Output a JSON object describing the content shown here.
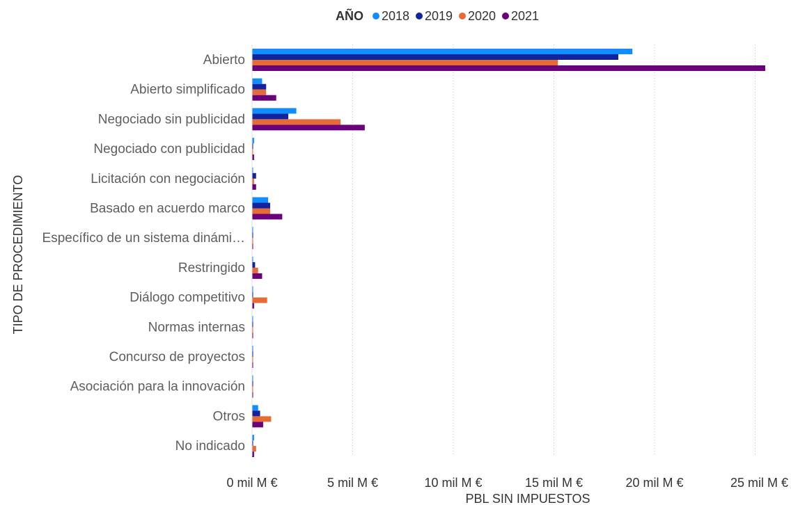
{
  "legend": {
    "title": "AÑO",
    "entries": [
      {
        "label": "2018",
        "color": "#118DFF"
      },
      {
        "label": "2019",
        "color": "#12239E"
      },
      {
        "label": "2020",
        "color": "#E66C37"
      },
      {
        "label": "2021",
        "color": "#6B007B"
      }
    ]
  },
  "chart_data": {
    "type": "bar",
    "orientation": "horizontal",
    "xlabel": "PBL SIN IMPUESTOS",
    "ylabel": "TIPO DE PROCEDIMIENTO",
    "xlim": [
      0,
      25
    ],
    "xunit": "mil M €",
    "x_ticks": [
      {
        "value": 0,
        "label": "0 mil M €"
      },
      {
        "value": 5,
        "label": "5 mil M €"
      },
      {
        "value": 10,
        "label": "10 mil M €"
      },
      {
        "value": 15,
        "label": "15 mil M €"
      },
      {
        "value": 20,
        "label": "20 mil M €"
      },
      {
        "value": 25,
        "label": "25 mil M €"
      }
    ],
    "grid": true,
    "legend_position": "top-center",
    "categories": [
      "Abierto",
      "Abierto simplificado",
      "Negociado sin publicidad",
      "Negociado con publicidad",
      "Licitación con negociación",
      "Basado en acuerdo marco",
      "Específico de un sistema dinámi…",
      "Restringido",
      "Diálogo competitivo",
      "Normas internas",
      "Concurso de proyectos",
      "Asociación para la innovación",
      "Otros",
      "No indicado"
    ],
    "series": [
      {
        "name": "2018",
        "color": "#118DFF",
        "values": [
          18.9,
          0.5,
          2.2,
          0.1,
          0.05,
          0.8,
          0.02,
          0.05,
          0.02,
          0.02,
          0.03,
          0.02,
          0.3,
          0.1
        ]
      },
      {
        "name": "2019",
        "color": "#12239E",
        "values": [
          18.2,
          0.7,
          1.8,
          0.05,
          0.2,
          0.9,
          0.02,
          0.15,
          0.03,
          0.02,
          0.02,
          0.02,
          0.4,
          0.05
        ]
      },
      {
        "name": "2020",
        "color": "#E66C37",
        "values": [
          15.2,
          0.7,
          4.4,
          0.05,
          0.1,
          0.9,
          0.02,
          0.3,
          0.75,
          0.03,
          0.03,
          0.03,
          0.95,
          0.2
        ]
      },
      {
        "name": "2021",
        "color": "#6B007B",
        "values": [
          25.5,
          1.2,
          5.6,
          0.1,
          0.2,
          1.5,
          0.02,
          0.5,
          0.1,
          0.03,
          0.04,
          0.02,
          0.55,
          0.1
        ]
      }
    ]
  }
}
